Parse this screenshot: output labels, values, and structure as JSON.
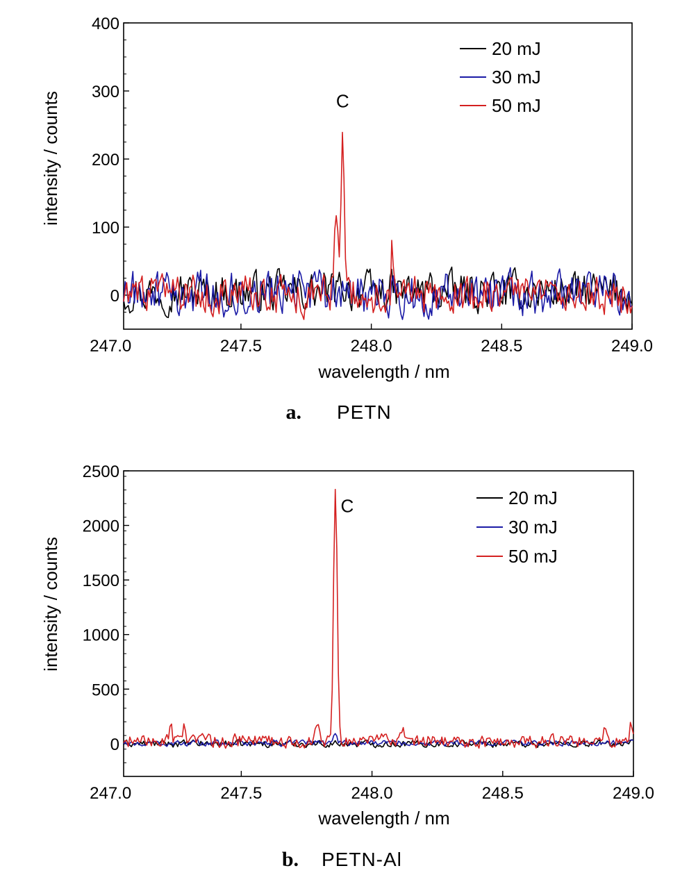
{
  "chart_data": [
    {
      "type": "line",
      "panel": "a",
      "caption_letter": "a.",
      "caption_name": "PETN",
      "xlabel": "wavelength / nm",
      "ylabel": "intensity / counts",
      "xlim": [
        247.05,
        249.0
      ],
      "ylim": [
        -50,
        400
      ],
      "xticks": [
        247.0,
        247.5,
        248.0,
        248.5,
        249.0
      ],
      "xtick_labels": [
        "247.0",
        "247.5",
        "248.0",
        "248.5",
        "249.0"
      ],
      "yticks": [
        0,
        100,
        200,
        300,
        400
      ],
      "ytick_labels": [
        "0",
        "100",
        "200",
        "300",
        "400"
      ],
      "legend_position": "top-right",
      "annotation": {
        "text": "C",
        "x": 247.89,
        "y": 285
      },
      "series": [
        {
          "name": "20 mJ",
          "color": "#000000",
          "baseline": 5,
          "noise": 16,
          "peaks": [
            [
              247.89,
              15,
              0.01
            ],
            [
              248.22,
              8,
              0.01
            ]
          ]
        },
        {
          "name": "30 mJ",
          "color": "#1a1aa6",
          "baseline": 2,
          "noise": 18,
          "peaks": [
            [
              247.89,
              12,
              0.01
            ]
          ]
        },
        {
          "name": "50 mJ",
          "color": "#d42020",
          "baseline": 0,
          "noise": 16,
          "peaks": [
            [
              247.865,
              120,
              0.012
            ],
            [
              247.89,
              245,
              0.008
            ],
            [
              248.08,
              85,
              0.005
            ]
          ]
        }
      ]
    },
    {
      "type": "line",
      "panel": "b",
      "caption_letter": "b.",
      "caption_name": "PETN-Al",
      "xlabel": "wavelength / nm",
      "ylabel": "intensity / counts",
      "xlim": [
        247.05,
        249.0
      ],
      "ylim": [
        -300,
        2500
      ],
      "xticks": [
        247.0,
        247.5,
        248.0,
        248.5,
        249.0
      ],
      "xtick_labels": [
        "247.0",
        "247.5",
        "248.0",
        "248.5",
        "249.0"
      ],
      "yticks": [
        0,
        500,
        1000,
        1500,
        2000,
        2500
      ],
      "ytick_labels": [
        "0",
        "500",
        "1000",
        "1500",
        "2000",
        "2500"
      ],
      "legend_position": "top-right",
      "annotation": {
        "text": "C",
        "x": 247.905,
        "y": 2180
      },
      "series": [
        {
          "name": "20 mJ",
          "color": "#000000",
          "baseline": 0,
          "noise": 18,
          "peaks": []
        },
        {
          "name": "30 mJ",
          "color": "#1a1aa6",
          "baseline": 5,
          "noise": 15,
          "peaks": [
            [
              247.86,
              95,
              0.008
            ]
          ]
        },
        {
          "name": "50 mJ",
          "color": "#d42020",
          "baseline": 25,
          "noise": 35,
          "peaks": [
            [
              247.86,
              2300,
              0.01
            ],
            [
              247.23,
              150,
              0.006
            ],
            [
              247.28,
              170,
              0.006
            ],
            [
              247.35,
              90,
              0.006
            ],
            [
              247.79,
              120,
              0.01
            ],
            [
              247.99,
              100,
              0.006
            ],
            [
              248.12,
              120,
              0.008
            ],
            [
              248.57,
              80,
              0.006
            ],
            [
              248.89,
              170,
              0.005
            ],
            [
              248.99,
              150,
              0.005
            ]
          ]
        }
      ]
    }
  ]
}
